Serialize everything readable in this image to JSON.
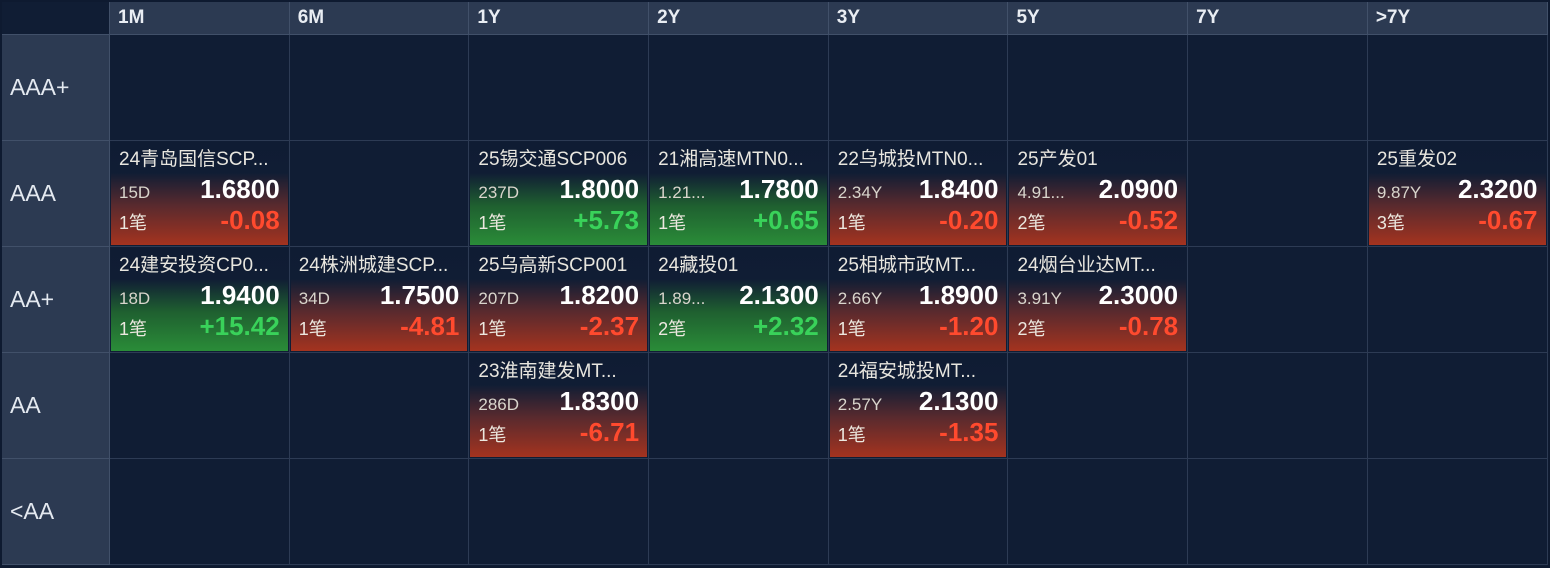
{
  "columns": [
    "1M",
    "6M",
    "1Y",
    "2Y",
    "3Y",
    "5Y",
    "7Y",
    ">7Y"
  ],
  "rows": [
    "AAA+",
    "AAA",
    "AA+",
    "AA",
    "<AA"
  ],
  "colors": {
    "up": "#39d25a",
    "down": "#ff4a2e",
    "background": "#101d34",
    "header": "#2c3a52"
  },
  "cells": {
    "AAA+": [
      null,
      null,
      null,
      null,
      null,
      null,
      null,
      null
    ],
    "AAA": [
      {
        "name": "24青岛国信SCP...",
        "term": "15D",
        "yield": "1.6800",
        "count": "1笔",
        "change": "-0.08",
        "dir": "down"
      },
      null,
      {
        "name": "25锡交通SCP006",
        "term": "237D",
        "yield": "1.8000",
        "count": "1笔",
        "change": "+5.73",
        "dir": "up"
      },
      {
        "name": "21湘高速MTN0...",
        "term": "1.21...",
        "yield": "1.7800",
        "count": "1笔",
        "change": "+0.65",
        "dir": "up"
      },
      {
        "name": "22乌城投MTN0...",
        "term": "2.34Y",
        "yield": "1.8400",
        "count": "1笔",
        "change": "-0.20",
        "dir": "down"
      },
      {
        "name": "25产发01",
        "term": "4.91...",
        "yield": "2.0900",
        "count": "2笔",
        "change": "-0.52",
        "dir": "down"
      },
      null,
      {
        "name": "25重发02",
        "term": "9.87Y",
        "yield": "2.3200",
        "count": "3笔",
        "change": "-0.67",
        "dir": "down"
      }
    ],
    "AA+": [
      {
        "name": "24建安投资CP0...",
        "term": "18D",
        "yield": "1.9400",
        "count": "1笔",
        "change": "+15.42",
        "dir": "up"
      },
      {
        "name": "24株洲城建SCP...",
        "term": "34D",
        "yield": "1.7500",
        "count": "1笔",
        "change": "-4.81",
        "dir": "down"
      },
      {
        "name": "25乌高新SCP001",
        "term": "207D",
        "yield": "1.8200",
        "count": "1笔",
        "change": "-2.37",
        "dir": "down"
      },
      {
        "name": "24藏投01",
        "term": "1.89...",
        "yield": "2.1300",
        "count": "2笔",
        "change": "+2.32",
        "dir": "up"
      },
      {
        "name": "25相城市政MT...",
        "term": "2.66Y",
        "yield": "1.8900",
        "count": "1笔",
        "change": "-1.20",
        "dir": "down"
      },
      {
        "name": "24烟台业达MT...",
        "term": "3.91Y",
        "yield": "2.3000",
        "count": "2笔",
        "change": "-0.78",
        "dir": "down"
      },
      null,
      null
    ],
    "AA": [
      null,
      null,
      {
        "name": "23淮南建发MT...",
        "term": "286D",
        "yield": "1.8300",
        "count": "1笔",
        "change": "-6.71",
        "dir": "down"
      },
      null,
      {
        "name": "24福安城投MT...",
        "term": "2.57Y",
        "yield": "2.1300",
        "count": "1笔",
        "change": "-1.35",
        "dir": "down"
      },
      null,
      null,
      null
    ],
    "<AA": [
      null,
      null,
      null,
      null,
      null,
      null,
      null,
      null
    ]
  }
}
